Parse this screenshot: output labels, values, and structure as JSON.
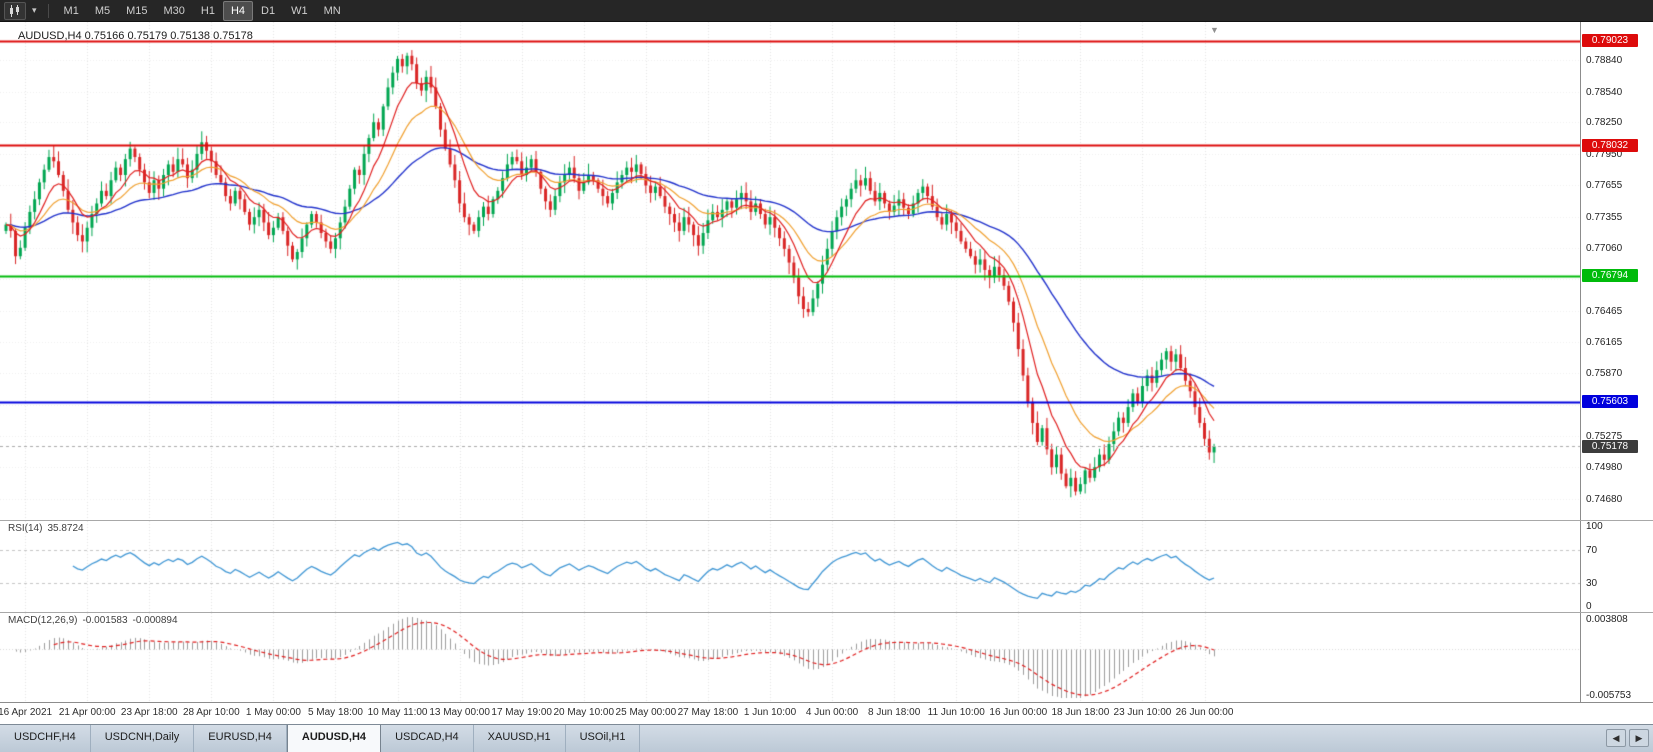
{
  "icons": {
    "dropdown_caret": "▾",
    "shift_marker": "▼",
    "scroll_left": "◀",
    "scroll_right": "▶"
  },
  "toolbar": {
    "timeframes": [
      "M1",
      "M5",
      "M15",
      "M30",
      "H1",
      "H4",
      "D1",
      "W1",
      "MN"
    ],
    "active_timeframe": "H4"
  },
  "chart": {
    "title_line": "AUDUSD,H4 0.75166 0.75179 0.75138 0.75178",
    "symbol": "AUDUSD",
    "period": "H4",
    "ohlc": {
      "open": "0.75166",
      "high": "0.75179",
      "low": "0.75138",
      "close": "0.75178"
    },
    "levels": [
      {
        "price": 0.79023,
        "label": "0.79023",
        "color": "#dd0b0b"
      },
      {
        "price": 0.78032,
        "label": "0.78032",
        "color": "#dd0b0b"
      },
      {
        "price": 0.76794,
        "label": "0.76794",
        "color": "#00bb0b"
      },
      {
        "price": 0.75603,
        "label": "0.75603",
        "color": "#0000dd"
      }
    ],
    "current_price": {
      "value": 0.75178,
      "label": "0.75178",
      "tag_color": "#3c3c3c"
    },
    "bull_color": "#00a651",
    "bear_color": "#d92626",
    "ma_colors": {
      "fast": "#e02020",
      "medium": "#f0a030",
      "slow": "#2233cc"
    }
  },
  "chart_data": {
    "type": "candlestick",
    "title": "AUDUSD,H4",
    "ylim": [
      0.7448,
      0.792
    ],
    "y_ticks": [
      "0.78840",
      "0.78540",
      "0.78250",
      "0.77950",
      "0.77655",
      "0.77355",
      "0.77060",
      "0.76760",
      "0.76465",
      "0.76165",
      "0.75870",
      "0.75570",
      "0.75275",
      "0.74980",
      "0.74680"
    ],
    "x_labels": [
      "16 Apr 2021",
      "21 Apr 00:00",
      "23 Apr 18:00",
      "28 Apr 10:00",
      "1 May 00:00",
      "5 May 18:00",
      "10 May 11:00",
      "13 May 00:00",
      "17 May 19:00",
      "20 May 10:00",
      "25 May 00:00",
      "27 May 18:00",
      "1 Jun 10:00",
      "4 Jun 00:00",
      "8 Jun 18:00",
      "11 Jun 10:00",
      "16 Jun 00:00",
      "18 Jun 18:00",
      "23 Jun 10:00",
      "26 Jun 00:00"
    ],
    "closes": [
      0.7728,
      0.7722,
      0.7698,
      0.7706,
      0.7725,
      0.774,
      0.7752,
      0.7768,
      0.778,
      0.7792,
      0.7788,
      0.7775,
      0.776,
      0.7742,
      0.773,
      0.7718,
      0.7712,
      0.7725,
      0.7738,
      0.7748,
      0.776,
      0.7755,
      0.777,
      0.7782,
      0.7775,
      0.779,
      0.78,
      0.7792,
      0.778,
      0.7768,
      0.7758,
      0.777,
      0.7762,
      0.7775,
      0.7785,
      0.7778,
      0.779,
      0.7785,
      0.7772,
      0.778,
      0.7795,
      0.7806,
      0.7798,
      0.7788,
      0.7775,
      0.7768,
      0.7755,
      0.7748,
      0.776,
      0.7752,
      0.774,
      0.7728,
      0.7735,
      0.7742,
      0.773,
      0.7718,
      0.7725,
      0.7735,
      0.7722,
      0.7708,
      0.7695,
      0.7702,
      0.7715,
      0.7728,
      0.7738,
      0.773,
      0.772,
      0.7712,
      0.7705,
      0.7715,
      0.773,
      0.7745,
      0.7762,
      0.778,
      0.7775,
      0.7795,
      0.781,
      0.7825,
      0.7818,
      0.784,
      0.7858,
      0.7872,
      0.7885,
      0.7878,
      0.7888,
      0.788,
      0.7862,
      0.7855,
      0.7868,
      0.7858,
      0.784,
      0.7818,
      0.78,
      0.7785,
      0.777,
      0.7748,
      0.7735,
      0.7728,
      0.7722,
      0.7735,
      0.7745,
      0.7738,
      0.7752,
      0.776,
      0.7772,
      0.7785,
      0.7792,
      0.7788,
      0.7775,
      0.7782,
      0.779,
      0.7778,
      0.7762,
      0.775,
      0.7742,
      0.7755,
      0.7768,
      0.7775,
      0.7782,
      0.7772,
      0.776,
      0.7768,
      0.7775,
      0.777,
      0.7762,
      0.7755,
      0.7748,
      0.7758,
      0.7768,
      0.7775,
      0.7782,
      0.7778,
      0.7785,
      0.7776,
      0.7765,
      0.7758,
      0.7764,
      0.7755,
      0.7745,
      0.7738,
      0.773,
      0.7722,
      0.7735,
      0.7728,
      0.7718,
      0.7708,
      0.772,
      0.7732,
      0.774,
      0.7735,
      0.7742,
      0.775,
      0.7744,
      0.7752,
      0.7758,
      0.775,
      0.774,
      0.7748,
      0.7738,
      0.7728,
      0.7735,
      0.7725,
      0.7715,
      0.7705,
      0.7692,
      0.7678,
      0.766,
      0.7648,
      0.7645,
      0.7658,
      0.7672,
      0.769,
      0.7705,
      0.7722,
      0.7735,
      0.7745,
      0.7752,
      0.7762,
      0.777,
      0.7765,
      0.7772,
      0.776,
      0.775,
      0.7758,
      0.7748,
      0.774,
      0.7746,
      0.7752,
      0.7744,
      0.7738,
      0.7748,
      0.7758,
      0.7764,
      0.7755,
      0.7745,
      0.7735,
      0.7728,
      0.7738,
      0.773,
      0.7722,
      0.7712,
      0.7705,
      0.7698,
      0.769,
      0.7695,
      0.7685,
      0.7678,
      0.7688,
      0.768,
      0.767,
      0.7655,
      0.7635,
      0.761,
      0.7585,
      0.756,
      0.754,
      0.7522,
      0.7535,
      0.7515,
      0.7498,
      0.751,
      0.7492,
      0.748,
      0.7488,
      0.7475,
      0.7482,
      0.7495,
      0.7488,
      0.7498,
      0.751,
      0.7505,
      0.752,
      0.7532,
      0.7545,
      0.754,
      0.7555,
      0.7568,
      0.756,
      0.7575,
      0.7585,
      0.7578,
      0.759,
      0.76,
      0.7608,
      0.7598,
      0.7605,
      0.7592,
      0.758,
      0.757,
      0.7555,
      0.754,
      0.7525,
      0.7512,
      0.75178
    ],
    "overlays": {
      "horizontal_lines": [
        0.79023,
        0.78032,
        0.76794,
        0.75603
      ],
      "moving_averages": [
        "fast-red",
        "medium-orange",
        "slow-blue"
      ],
      "current_price": 0.75178
    },
    "sub_charts": [
      {
        "type": "line",
        "name": "RSI(14)",
        "current_value": 35.8724,
        "range": [
          0,
          100
        ],
        "levels": [
          70,
          30
        ]
      },
      {
        "type": "histogram",
        "name": "MACD(12,26,9)",
        "current_values": [
          -0.001583,
          -0.000894
        ],
        "range": [
          -0.005753,
          0.003808
        ]
      }
    ]
  },
  "rsi": {
    "label": "RSI(14)",
    "value": "35.8724",
    "ticks": [
      "100",
      "70",
      "30",
      "0"
    ],
    "tick_values": [
      100,
      70,
      30,
      0
    ],
    "levels": [
      70,
      30
    ],
    "line_color": "#3f96d4"
  },
  "macd": {
    "label": "MACD(12,26,9)",
    "value_main": "-0.001583",
    "value_signal": "-0.000894",
    "ticks": [
      "0.003808",
      "-0.005753"
    ],
    "tick_values": [
      0.003808,
      -0.005753
    ],
    "hist_color": "#9c9c9c",
    "signal_color": "#e02020"
  },
  "tabs": {
    "items": [
      {
        "label": "USDCHF,H4",
        "active": false
      },
      {
        "label": "USDCNH,Daily",
        "active": false
      },
      {
        "label": "EURUSD,H4",
        "active": false
      },
      {
        "label": "AUDUSD,H4",
        "active": true
      },
      {
        "label": "USDCAD,H4",
        "active": false
      },
      {
        "label": "XAUUSD,H1",
        "active": false
      },
      {
        "label": "USOil,H1",
        "active": false
      }
    ]
  }
}
